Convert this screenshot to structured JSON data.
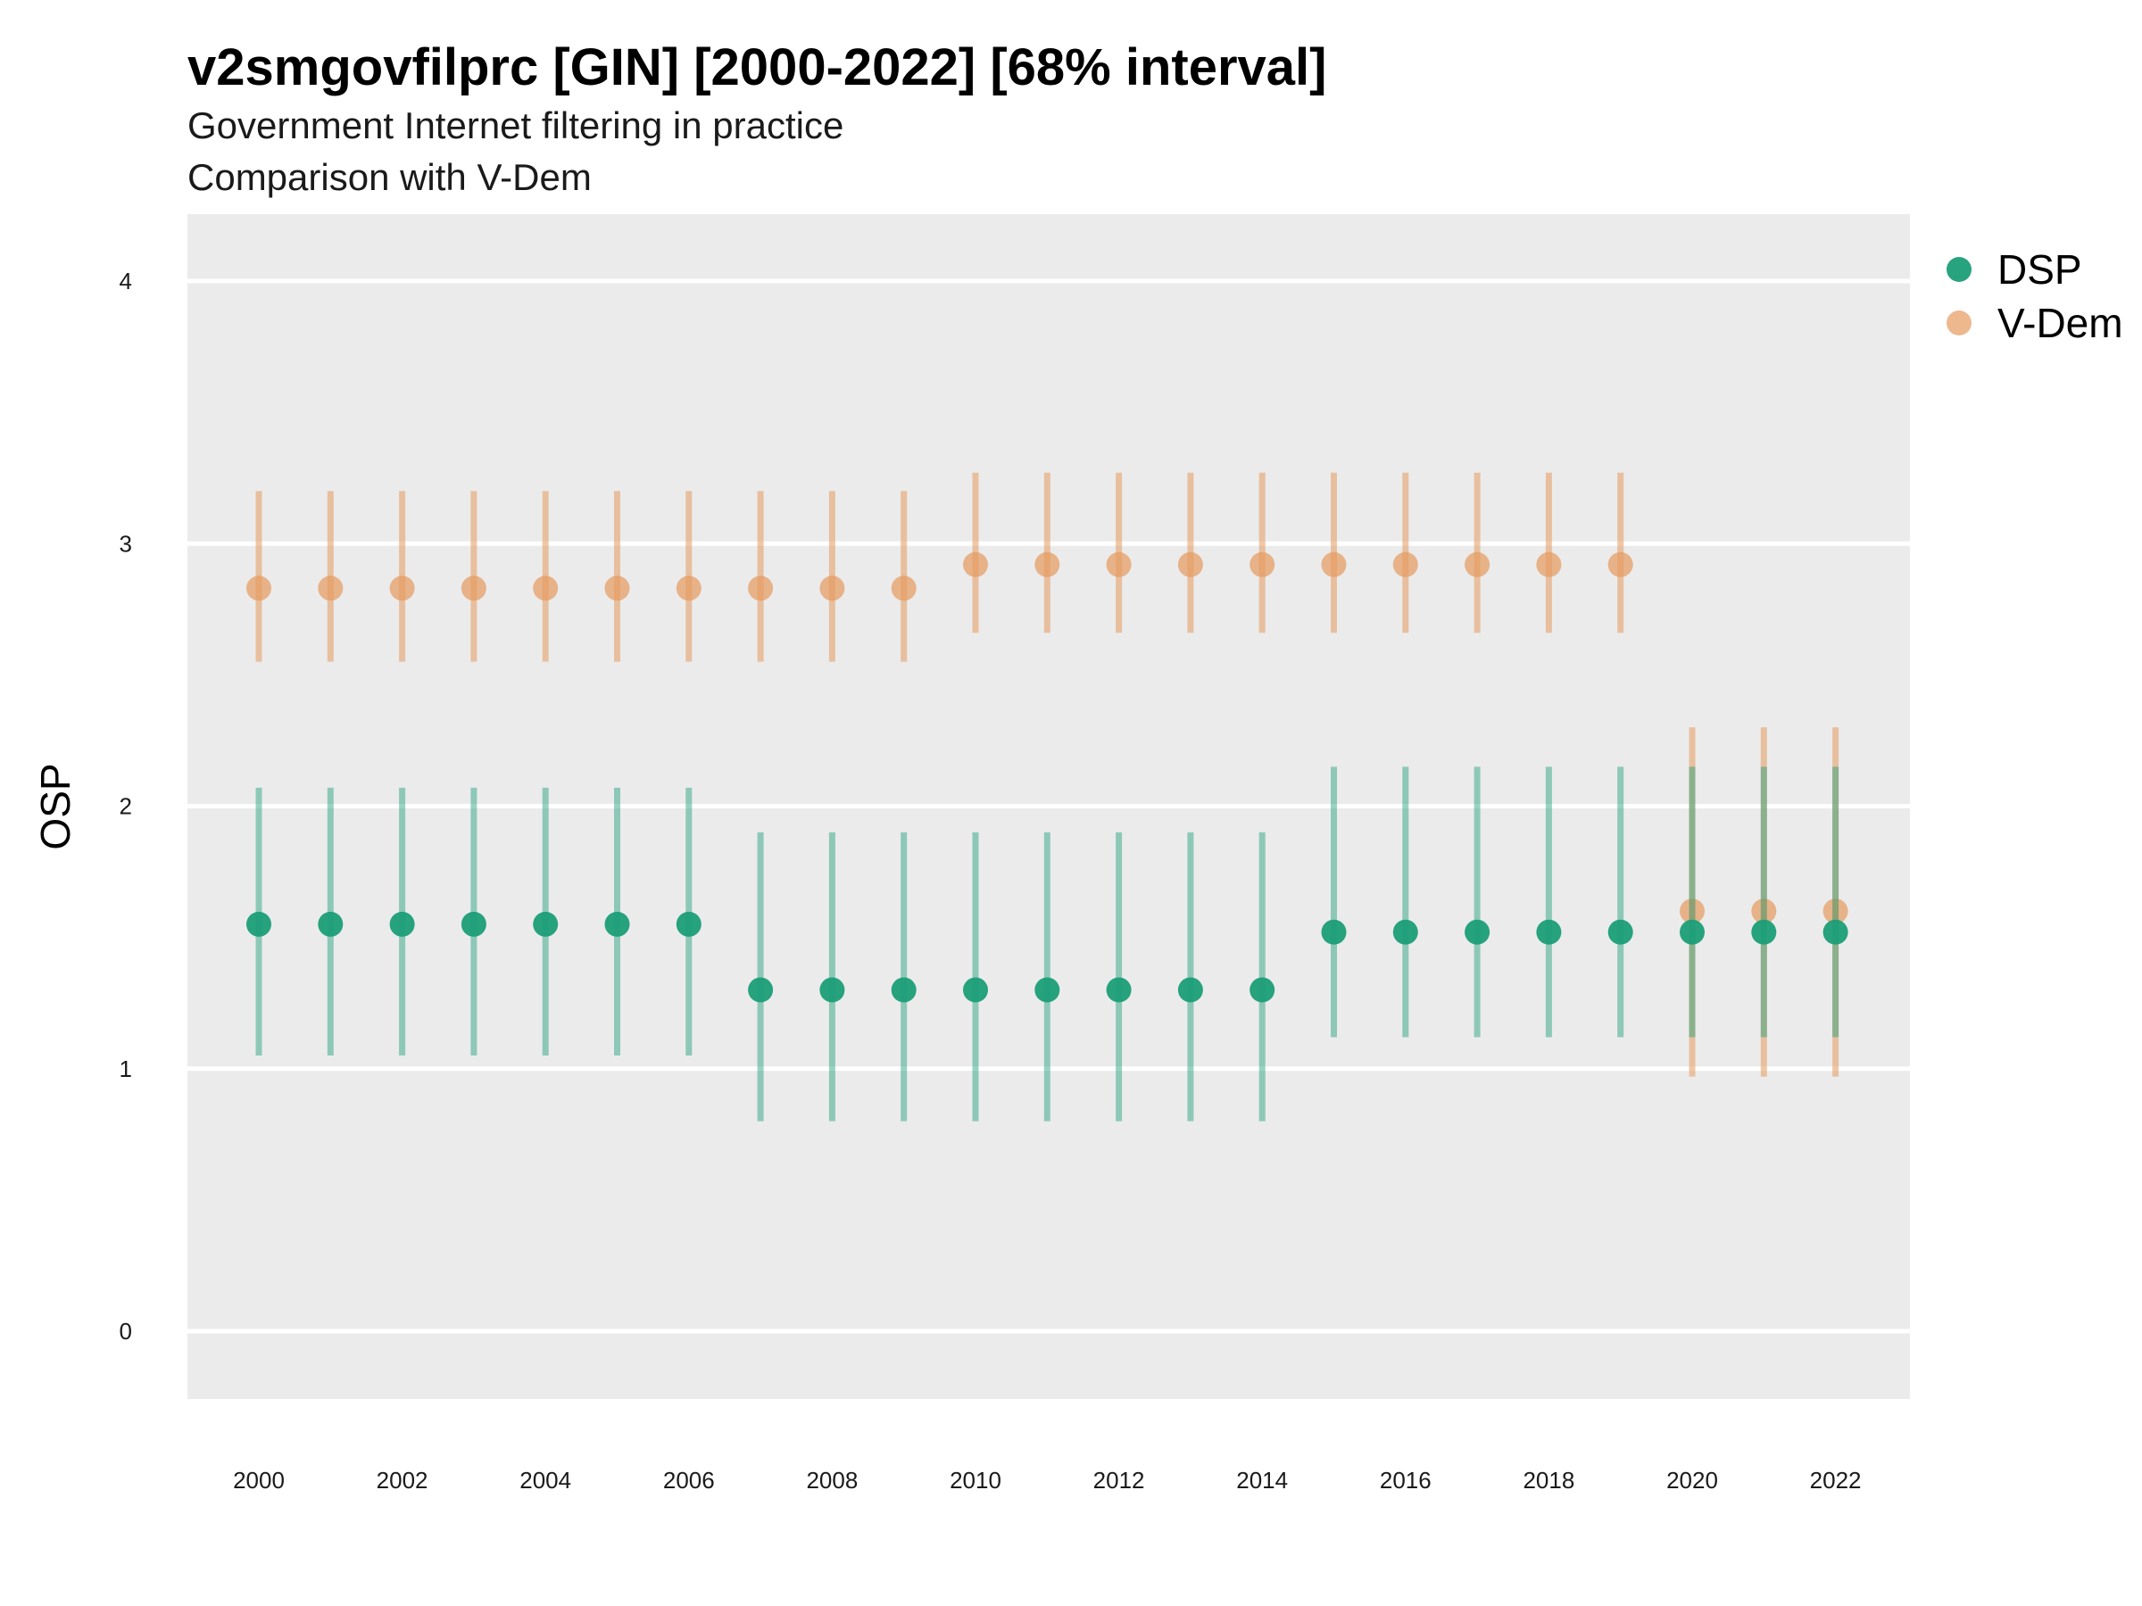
{
  "chart_data": {
    "type": "scatter",
    "title": "v2smgovfilprc [GIN] [2000-2022] [68% interval]",
    "subtitle_lines": [
      "Government Internet filtering in practice",
      "Comparison with V-Dem"
    ],
    "xlabel": "",
    "ylabel": "OSP",
    "x_ticks": [
      2000,
      2002,
      2004,
      2006,
      2008,
      2010,
      2012,
      2014,
      2016,
      2018,
      2020,
      2022
    ],
    "y_ticks": [
      0,
      1,
      2,
      3,
      4
    ],
    "ylim": [
      -0.25,
      4.25
    ],
    "xlim": [
      1999,
      2023
    ],
    "grid": true,
    "legend_position": "right",
    "colors": {
      "DSP": "#1b9e77",
      "V-Dem": "#e69a5e"
    },
    "series": [
      {
        "name": "DSP",
        "points": [
          {
            "x": 2000,
            "y": 1.55,
            "lo": 1.05,
            "hi": 2.07
          },
          {
            "x": 2001,
            "y": 1.55,
            "lo": 1.05,
            "hi": 2.07
          },
          {
            "x": 2002,
            "y": 1.55,
            "lo": 1.05,
            "hi": 2.07
          },
          {
            "x": 2003,
            "y": 1.55,
            "lo": 1.05,
            "hi": 2.07
          },
          {
            "x": 2004,
            "y": 1.55,
            "lo": 1.05,
            "hi": 2.07
          },
          {
            "x": 2005,
            "y": 1.55,
            "lo": 1.05,
            "hi": 2.07
          },
          {
            "x": 2006,
            "y": 1.55,
            "lo": 1.05,
            "hi": 2.07
          },
          {
            "x": 2007,
            "y": 1.3,
            "lo": 0.8,
            "hi": 1.9
          },
          {
            "x": 2008,
            "y": 1.3,
            "lo": 0.8,
            "hi": 1.9
          },
          {
            "x": 2009,
            "y": 1.3,
            "lo": 0.8,
            "hi": 1.9
          },
          {
            "x": 2010,
            "y": 1.3,
            "lo": 0.8,
            "hi": 1.9
          },
          {
            "x": 2011,
            "y": 1.3,
            "lo": 0.8,
            "hi": 1.9
          },
          {
            "x": 2012,
            "y": 1.3,
            "lo": 0.8,
            "hi": 1.9
          },
          {
            "x": 2013,
            "y": 1.3,
            "lo": 0.8,
            "hi": 1.9
          },
          {
            "x": 2014,
            "y": 1.3,
            "lo": 0.8,
            "hi": 1.9
          },
          {
            "x": 2015,
            "y": 1.52,
            "lo": 1.12,
            "hi": 2.15
          },
          {
            "x": 2016,
            "y": 1.52,
            "lo": 1.12,
            "hi": 2.15
          },
          {
            "x": 2017,
            "y": 1.52,
            "lo": 1.12,
            "hi": 2.15
          },
          {
            "x": 2018,
            "y": 1.52,
            "lo": 1.12,
            "hi": 2.15
          },
          {
            "x": 2019,
            "y": 1.52,
            "lo": 1.12,
            "hi": 2.15
          },
          {
            "x": 2020,
            "y": 1.52,
            "lo": 1.12,
            "hi": 2.15
          },
          {
            "x": 2021,
            "y": 1.52,
            "lo": 1.12,
            "hi": 2.15
          },
          {
            "x": 2022,
            "y": 1.52,
            "lo": 1.12,
            "hi": 2.15
          }
        ]
      },
      {
        "name": "V-Dem",
        "points": [
          {
            "x": 2000,
            "y": 2.83,
            "lo": 2.55,
            "hi": 3.2
          },
          {
            "x": 2001,
            "y": 2.83,
            "lo": 2.55,
            "hi": 3.2
          },
          {
            "x": 2002,
            "y": 2.83,
            "lo": 2.55,
            "hi": 3.2
          },
          {
            "x": 2003,
            "y": 2.83,
            "lo": 2.55,
            "hi": 3.2
          },
          {
            "x": 2004,
            "y": 2.83,
            "lo": 2.55,
            "hi": 3.2
          },
          {
            "x": 2005,
            "y": 2.83,
            "lo": 2.55,
            "hi": 3.2
          },
          {
            "x": 2006,
            "y": 2.83,
            "lo": 2.55,
            "hi": 3.2
          },
          {
            "x": 2007,
            "y": 2.83,
            "lo": 2.55,
            "hi": 3.2
          },
          {
            "x": 2008,
            "y": 2.83,
            "lo": 2.55,
            "hi": 3.2
          },
          {
            "x": 2009,
            "y": 2.83,
            "lo": 2.55,
            "hi": 3.2
          },
          {
            "x": 2010,
            "y": 2.92,
            "lo": 2.66,
            "hi": 3.27
          },
          {
            "x": 2011,
            "y": 2.92,
            "lo": 2.66,
            "hi": 3.27
          },
          {
            "x": 2012,
            "y": 2.92,
            "lo": 2.66,
            "hi": 3.27
          },
          {
            "x": 2013,
            "y": 2.92,
            "lo": 2.66,
            "hi": 3.27
          },
          {
            "x": 2014,
            "y": 2.92,
            "lo": 2.66,
            "hi": 3.27
          },
          {
            "x": 2015,
            "y": 2.92,
            "lo": 2.66,
            "hi": 3.27
          },
          {
            "x": 2016,
            "y": 2.92,
            "lo": 2.66,
            "hi": 3.27
          },
          {
            "x": 2017,
            "y": 2.92,
            "lo": 2.66,
            "hi": 3.27
          },
          {
            "x": 2018,
            "y": 2.92,
            "lo": 2.66,
            "hi": 3.27
          },
          {
            "x": 2019,
            "y": 2.92,
            "lo": 2.66,
            "hi": 3.27
          },
          {
            "x": 2020,
            "y": 1.6,
            "lo": 0.97,
            "hi": 2.3
          },
          {
            "x": 2021,
            "y": 1.6,
            "lo": 0.97,
            "hi": 2.3
          },
          {
            "x": 2022,
            "y": 1.6,
            "lo": 0.97,
            "hi": 2.3
          }
        ]
      }
    ]
  }
}
